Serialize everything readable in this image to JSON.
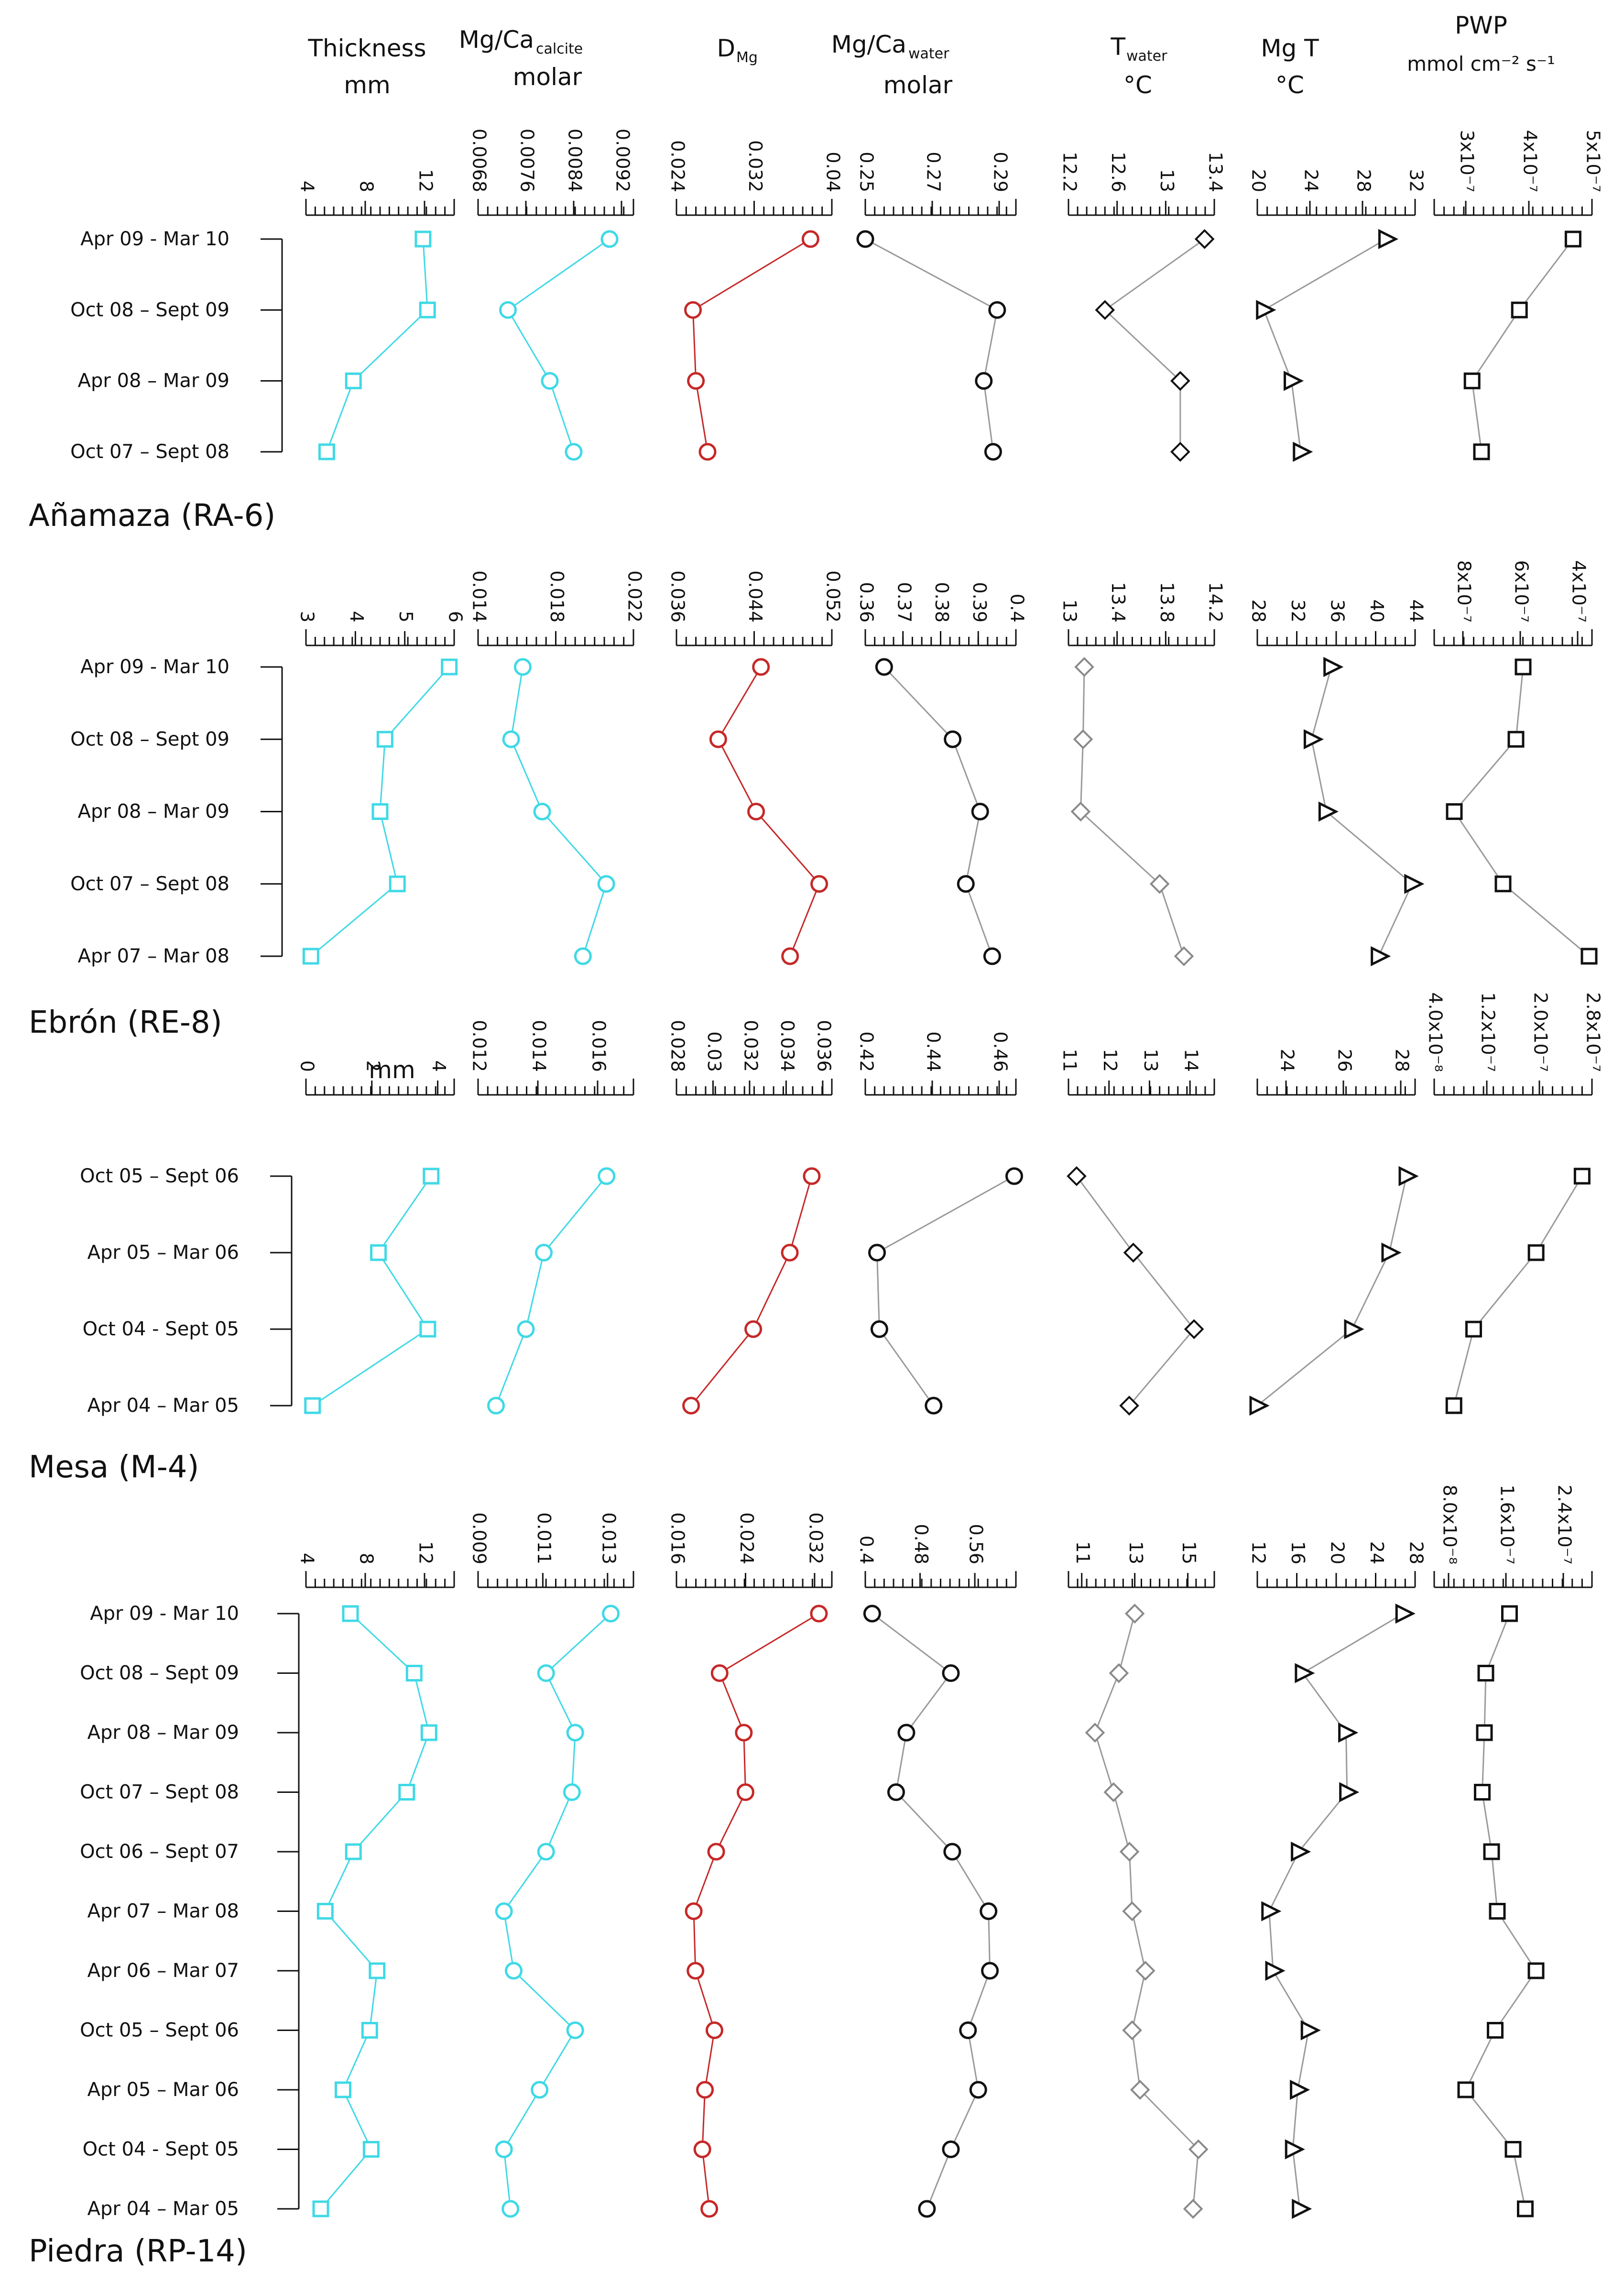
{
  "headers": [
    {
      "main": "Thickness",
      "sub": "",
      "unit": "mm"
    },
    {
      "main": "Mg/Ca",
      "sub": "calcite",
      "unit": "molar"
    },
    {
      "main": "D",
      "sub": "Mg",
      "unit": ""
    },
    {
      "main": "Mg/Ca",
      "sub": "water",
      "unit": "molar"
    },
    {
      "main": "T",
      "sub": "water",
      "unit": "°C"
    },
    {
      "main": "Mg T",
      "sub": "",
      "unit": "°C"
    },
    {
      "main": "PWP",
      "sub": "",
      "unit": "mmol cm⁻² s⁻¹"
    }
  ],
  "colors": {
    "thickness": "#3fd9e6",
    "mgca_calcite": "#3fd9e6",
    "dmg": "#c62828",
    "mgca_water": "#111111",
    "twater_diamond_panel1": "#111111",
    "twater_diamond_light": "#8a8a8a",
    "mgt": "#111111",
    "pwp": "#111111",
    "line_dark": "#9a9a9a"
  },
  "markers": {
    "thickness": "square",
    "mgca_calcite": "circle",
    "dmg": "circle",
    "mgca_water": "circle",
    "twater": "diamond",
    "mgt": "triangle",
    "pwp": "square"
  },
  "chart_data": [
    {
      "type": "line",
      "site": "Añamaza (RA-6)",
      "rows": [
        "Apr 09 - Mar 10",
        "Oct 08 – Sept 09",
        "Apr 08 – Mar 09",
        "Oct 07 – Sept 08"
      ],
      "series": [
        {
          "key": "thickness",
          "ticks": [
            "4",
            "8",
            "12"
          ],
          "range": [
            4,
            14
          ],
          "values": [
            11.9,
            12.2,
            7.2,
            5.4
          ]
        },
        {
          "key": "mgca_calcite",
          "ticks": [
            "0.0068",
            "0.0076",
            "0.0084",
            "0.0092"
          ],
          "range": [
            0.0068,
            0.0094
          ],
          "values": [
            0.009,
            0.0073,
            0.008,
            0.0084
          ]
        },
        {
          "key": "dmg",
          "ticks": [
            "0.024",
            "0.032",
            "0.04"
          ],
          "range": [
            0.024,
            0.04
          ],
          "values": [
            0.0378,
            0.0257,
            0.026,
            0.0272
          ]
        },
        {
          "key": "mgca_water",
          "ticks": [
            "0.25",
            "0.27",
            "0.29"
          ],
          "range": [
            0.25,
            0.295
          ],
          "values": [
            0.25,
            0.2894,
            0.2854,
            0.2882
          ]
        },
        {
          "key": "twater",
          "ticks": [
            "12.2",
            "12.6",
            "13",
            "13.4"
          ],
          "range": [
            12.2,
            13.4
          ],
          "values": [
            13.32,
            12.5,
            13.12,
            13.12
          ]
        },
        {
          "key": "mgt",
          "ticks": [
            "20",
            "24",
            "28",
            "32"
          ],
          "range": [
            20,
            32
          ],
          "values": [
            29.8,
            20.5,
            22.6,
            23.3
          ]
        },
        {
          "key": "pwp",
          "ticks": [
            "3x10⁻⁷",
            "4x10⁻⁷",
            "5x10⁻⁷"
          ],
          "range": [
            2.5e-07,
            5e-07
          ],
          "values": [
            4.7e-07,
            3.85e-07,
            3.1e-07,
            3.25e-07
          ]
        }
      ]
    },
    {
      "type": "line",
      "site": "Ebrón (RE-8)",
      "rows": [
        "Apr 09 - Mar 10",
        "Oct 08 – Sept 09",
        "Apr 08 – Mar 09",
        "Oct 07 – Sept 08",
        "Apr 07 – Mar 08"
      ],
      "series": [
        {
          "key": "thickness",
          "ticks": [
            "3",
            "4",
            "5",
            "6"
          ],
          "range": [
            3,
            6
          ],
          "values": [
            5.9,
            4.6,
            4.5,
            4.85,
            3.1
          ]
        },
        {
          "key": "mgca_calcite",
          "ticks": [
            "0.014",
            "0.018",
            "0.022"
          ],
          "range": [
            0.014,
            0.022
          ],
          "values": [
            0.0163,
            0.0157,
            0.0173,
            0.0206,
            0.0194
          ]
        },
        {
          "key": "dmg",
          "ticks": [
            "0.036",
            "0.044",
            "0.052"
          ],
          "range": [
            0.036,
            0.052
          ],
          "values": [
            0.0447,
            0.0403,
            0.0442,
            0.0507,
            0.0477
          ]
        },
        {
          "key": "mgca_water",
          "ticks": [
            "0.36",
            "0.37",
            "0.38",
            "0.39",
            "0.4"
          ],
          "range": [
            0.36,
            0.4
          ],
          "values": [
            0.365,
            0.3832,
            0.3905,
            0.3867,
            0.3937
          ]
        },
        {
          "key": "twater",
          "ticks": [
            "13",
            "13.4",
            "13.8",
            "14.2"
          ],
          "range": [
            13,
            14.2
          ],
          "values": [
            13.13,
            13.12,
            13.1,
            13.75,
            13.95
          ]
        },
        {
          "key": "mgt",
          "ticks": [
            "28",
            "32",
            "36",
            "40",
            "44"
          ],
          "range": [
            28,
            44
          ],
          "values": [
            35.5,
            33.5,
            35.0,
            43.7,
            40.3
          ]
        },
        {
          "key": "pwp",
          "ticks": [
            "8x10⁻⁷",
            "6x10⁻⁷",
            "4x10⁻⁷"
          ],
          "range": [
            9e-07,
            3.5e-07
          ],
          "values": [
            5.9e-07,
            6.15e-07,
            8.3e-07,
            6.6e-07,
            3.6e-07
          ]
        }
      ]
    },
    {
      "type": "line",
      "site": "Mesa (M-4)",
      "axis_unit_first": "mm",
      "rows": [
        "Oct 05 – Sept 06",
        "Apr 05 – Mar 06",
        "Oct 04 - Sept 05",
        "Apr 04 – Mar 05"
      ],
      "series": [
        {
          "key": "thickness",
          "ticks": [
            "0",
            "2",
            "4"
          ],
          "range": [
            0,
            4.5
          ],
          "values": [
            3.8,
            2.2,
            3.7,
            0.2
          ]
        },
        {
          "key": "mgca_calcite",
          "ticks": [
            "0.012",
            "0.014",
            "0.016"
          ],
          "range": [
            0.012,
            0.0172
          ],
          "values": [
            0.0163,
            0.0142,
            0.0136,
            0.0126
          ]
        },
        {
          "key": "dmg",
          "ticks": [
            "0.028",
            "0.03",
            "0.032",
            "0.034",
            "0.036"
          ],
          "range": [
            0.028,
            0.0365
          ],
          "values": [
            0.0354,
            0.0342,
            0.0322,
            0.0288
          ]
        },
        {
          "key": "mgca_water",
          "ticks": [
            "0.42",
            "0.44",
            "0.46"
          ],
          "range": [
            0.42,
            0.465
          ],
          "values": [
            0.4645,
            0.4235,
            0.4242,
            0.4404
          ]
        },
        {
          "key": "twater",
          "ticks": [
            "11",
            "12",
            "13",
            "14"
          ],
          "range": [
            11,
            14.6
          ],
          "values": [
            11.2,
            12.6,
            14.1,
            12.5
          ]
        },
        {
          "key": "mgt",
          "ticks": [
            "24",
            "26",
            "28"
          ],
          "range": [
            23,
            28.5
          ],
          "values": [
            28.2,
            27.6,
            26.3,
            23.0
          ]
        },
        {
          "key": "pwp",
          "ticks": [
            "4.0x10⁻⁸",
            "1.2x10⁻⁷",
            "2.0x10⁻⁷",
            "2.8x10⁻⁷"
          ],
          "range": [
            4e-08,
            2.8e-07
          ],
          "values": [
            2.65e-07,
            1.95e-07,
            1e-07,
            7e-08
          ]
        }
      ]
    },
    {
      "type": "line",
      "site": "Piedra (RP-14)",
      "rows": [
        "Apr 09 - Mar 10",
        "Oct 08 – Sept 09",
        "Apr 08 – Mar 09",
        "Oct 07 – Sept 08",
        "Oct 06 – Sept 07",
        "Apr 07 – Mar 08",
        "Apr 06 – Mar 07",
        "Oct 05 – Sept 06",
        "Apr 05 – Mar 06",
        "Oct 04 - Sept 05",
        "Apr 04 – Mar 05"
      ],
      "series": [
        {
          "key": "thickness",
          "ticks": [
            "4",
            "8",
            "12"
          ],
          "range": [
            4,
            14
          ],
          "values": [
            7,
            11.3,
            12.3,
            10.8,
            7.2,
            5.3,
            8.8,
            8.3,
            6.5,
            8.4,
            5.0
          ]
        },
        {
          "key": "mgca_calcite",
          "ticks": [
            "0.009",
            "0.011",
            "0.013"
          ],
          "range": [
            0.009,
            0.0138
          ],
          "values": [
            0.0131,
            0.0111,
            0.012,
            0.0119,
            0.0111,
            0.0098,
            0.0101,
            0.012,
            0.0109,
            0.0098,
            0.01
          ]
        },
        {
          "key": "dmg",
          "ticks": [
            "0.016",
            "0.024",
            "0.032"
          ],
          "range": [
            0.016,
            0.034
          ],
          "values": [
            0.0325,
            0.021,
            0.0238,
            0.024,
            0.0206,
            0.018,
            0.0182,
            0.0204,
            0.0193,
            0.019,
            0.0198
          ]
        },
        {
          "key": "mgca_water",
          "ticks": [
            "0.4",
            "0.48",
            "0.56"
          ],
          "range": [
            0.4,
            0.62
          ],
          "values": [
            0.41,
            0.525,
            0.46,
            0.445,
            0.527,
            0.58,
            0.582,
            0.55,
            0.565,
            0.525,
            0.49
          ]
        },
        {
          "key": "twater",
          "ticks": [
            "11",
            "13",
            "15"
          ],
          "range": [
            10.5,
            16
          ],
          "values": [
            13.0,
            12.4,
            11.5,
            12.2,
            12.8,
            12.9,
            13.4,
            12.9,
            13.2,
            15.4,
            15.2
          ]
        },
        {
          "key": "mgt",
          "ticks": [
            "12",
            "16",
            "20",
            "24",
            "28"
          ],
          "range": [
            12,
            28
          ],
          "values": [
            26.8,
            16.6,
            21.0,
            21.1,
            16.2,
            13.2,
            13.6,
            17.2,
            16.1,
            15.6,
            16.3
          ]
        },
        {
          "key": "pwp",
          "ticks": [
            "8.0x10⁻⁸",
            "1.6x10⁻⁷",
            "2.4x10⁻⁷"
          ],
          "range": [
            6e-08,
            2.8e-07
          ],
          "values": [
            1.65e-07,
            1.32e-07,
            1.3e-07,
            1.27e-07,
            1.4e-07,
            1.48e-07,
            2.02e-07,
            1.45e-07,
            1.04e-07,
            1.7e-07,
            1.87e-07
          ]
        }
      ]
    }
  ]
}
